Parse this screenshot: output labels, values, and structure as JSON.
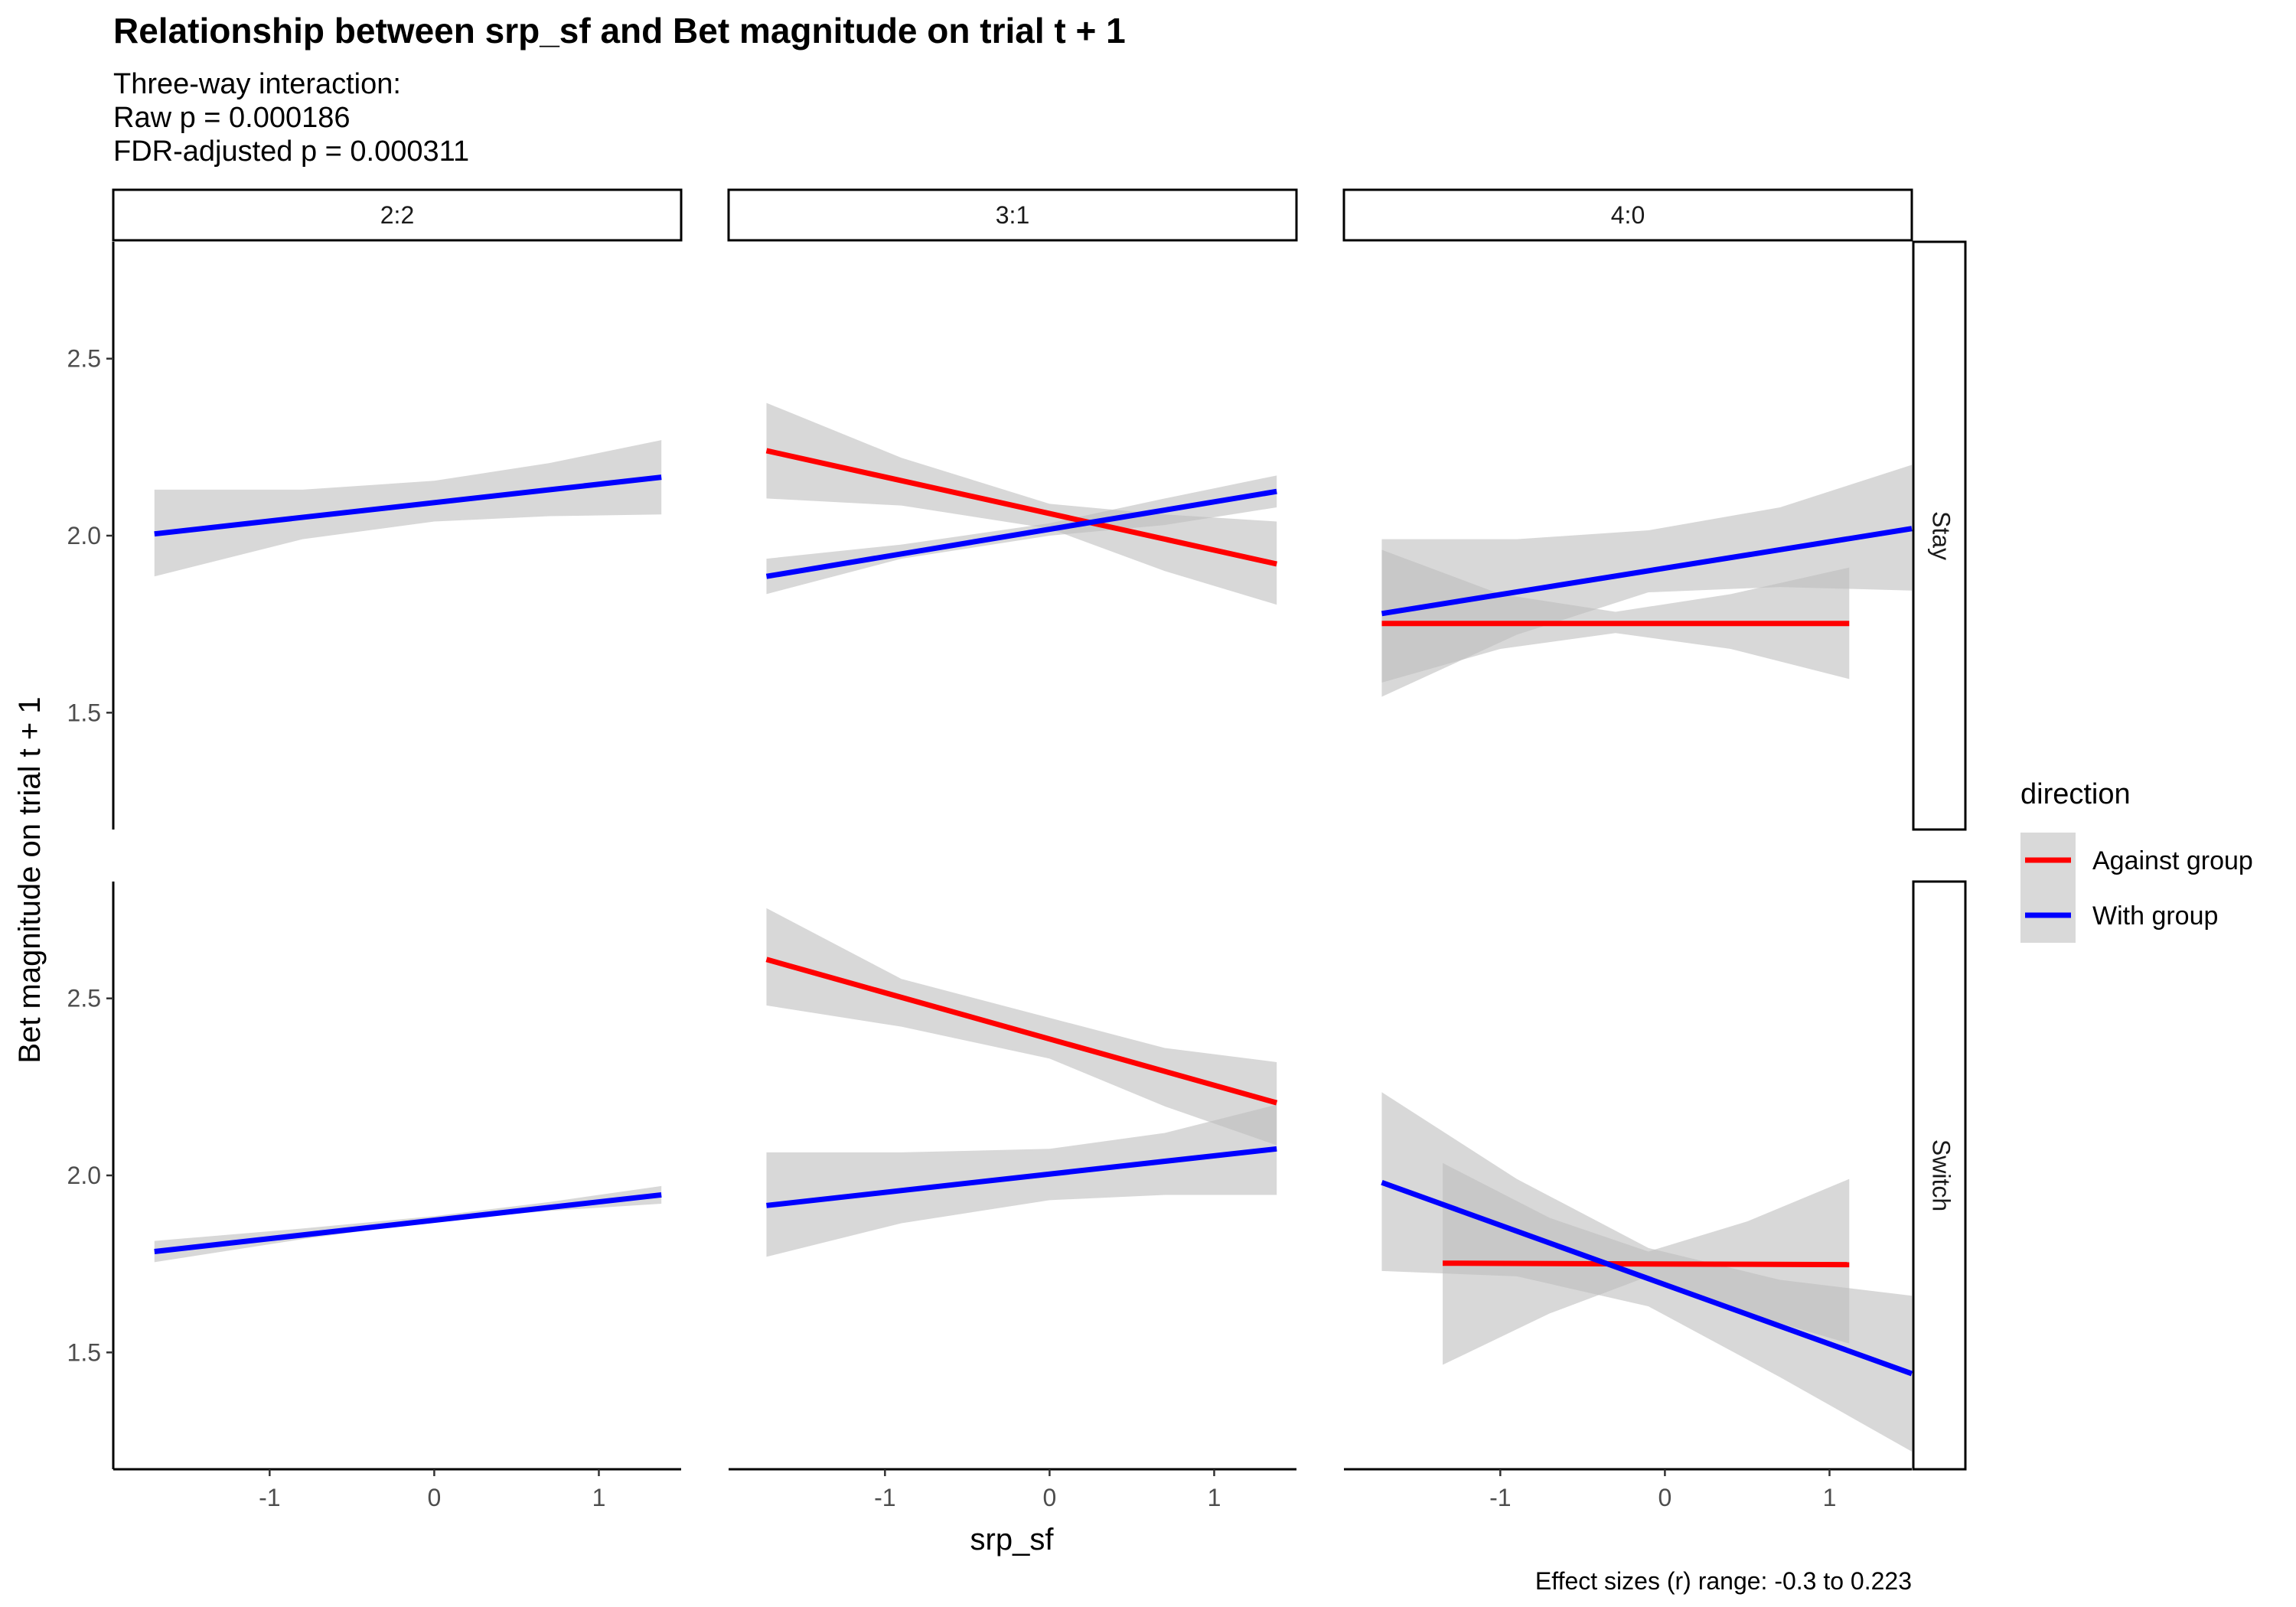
{
  "chart_data": {
    "type": "line",
    "title": "Relationship between srp_sf and Bet magnitude on trial t + 1",
    "subtitle_lines": [
      "Three-way interaction:",
      "Raw p = 0.000186",
      "FDR-adjusted p = 0.000311"
    ],
    "xlabel": "srp_sf",
    "ylabel": "Bet magnitude on trial t + 1",
    "caption": "Effect sizes (r) range: -0.3 to 0.223",
    "xlim": [
      -1.95,
      1.5
    ],
    "ylim": [
      1.17,
      2.83
    ],
    "x_ticks": [
      -1,
      0,
      1
    ],
    "x_tick_labels": [
      "-1",
      "0",
      "1"
    ],
    "y_ticks": [
      1.5,
      2.0,
      2.5
    ],
    "y_tick_labels": [
      "1.5",
      "2.0",
      "2.5"
    ],
    "grid": false,
    "column_facets": [
      "2:2",
      "3:1",
      "4:0"
    ],
    "row_facets": [
      "Stay",
      "Switch"
    ],
    "legend": {
      "title": "direction",
      "position": "right",
      "entries": [
        {
          "name": "Against group",
          "color": "#ff0000"
        },
        {
          "name": "With group",
          "color": "#0000ff"
        }
      ]
    },
    "ribbon_color": "#bebebe",
    "panels": [
      {
        "column": "2:2",
        "row": "Stay",
        "series": [
          {
            "name": "With group",
            "x": [
              -1.7,
              1.38
            ],
            "y": [
              2.005,
              2.165
            ],
            "ribbon_x": [
              -1.7,
              -0.8,
              0.0,
              0.7,
              1.38
            ],
            "ribbon_lower": [
              1.885,
              1.99,
              2.04,
              2.055,
              2.06
            ],
            "ribbon_upper": [
              2.13,
              2.13,
              2.155,
              2.205,
              2.27
            ]
          }
        ]
      },
      {
        "column": "3:1",
        "row": "Stay",
        "series": [
          {
            "name": "Against group",
            "x": [
              -1.72,
              1.38
            ],
            "y": [
              2.24,
              1.92
            ],
            "ribbon_x": [
              -1.72,
              -0.9,
              0.0,
              0.7,
              1.38
            ],
            "ribbon_lower": [
              2.105,
              2.085,
              2.02,
              1.9,
              1.805
            ],
            "ribbon_upper": [
              2.375,
              2.22,
              2.09,
              2.06,
              2.04
            ]
          },
          {
            "name": "With group",
            "x": [
              -1.72,
              1.38
            ],
            "y": [
              1.885,
              2.125
            ],
            "ribbon_x": [
              -1.72,
              -0.9,
              0.0,
              0.7,
              1.38
            ],
            "ribbon_lower": [
              1.835,
              1.935,
              2.0,
              2.03,
              2.08
            ],
            "ribbon_upper": [
              1.935,
              1.975,
              2.035,
              2.105,
              2.17
            ]
          }
        ]
      },
      {
        "column": "4:0",
        "row": "Stay",
        "series": [
          {
            "name": "Against group",
            "x": [
              -1.72,
              1.12
            ],
            "y": [
              1.752,
              1.752
            ],
            "ribbon_x": [
              -1.72,
              -1.0,
              -0.3,
              0.4,
              1.12
            ],
            "ribbon_lower": [
              1.585,
              1.68,
              1.725,
              1.68,
              1.595
            ],
            "ribbon_upper": [
              1.96,
              1.835,
              1.785,
              1.835,
              1.91
            ]
          },
          {
            "name": "With group",
            "x": [
              -1.72,
              1.5
            ],
            "y": [
              1.78,
              2.02
            ],
            "ribbon_x": [
              -1.72,
              -0.9,
              -0.1,
              0.7,
              1.5
            ],
            "ribbon_lower": [
              1.545,
              1.72,
              1.84,
              1.855,
              1.845
            ],
            "ribbon_upper": [
              1.99,
              1.99,
              2.015,
              2.08,
              2.2
            ]
          }
        ]
      },
      {
        "column": "2:2",
        "row": "Switch",
        "series": [
          {
            "name": "With group",
            "x": [
              -1.7,
              1.38
            ],
            "y": [
              1.785,
              1.945
            ],
            "ribbon_x": [
              -1.7,
              -0.8,
              0.0,
              0.7,
              1.38
            ],
            "ribbon_lower": [
              1.755,
              1.82,
              1.87,
              1.9,
              1.92
            ],
            "ribbon_upper": [
              1.815,
              1.85,
              1.885,
              1.925,
              1.97
            ]
          }
        ]
      },
      {
        "column": "3:1",
        "row": "Switch",
        "series": [
          {
            "name": "Against group",
            "x": [
              -1.72,
              1.38
            ],
            "y": [
              2.61,
              2.205
            ],
            "ribbon_x": [
              -1.72,
              -0.9,
              0.0,
              0.7,
              1.38
            ],
            "ribbon_lower": [
              2.48,
              2.42,
              2.33,
              2.195,
              2.085
            ],
            "ribbon_upper": [
              2.755,
              2.555,
              2.445,
              2.36,
              2.32
            ]
          },
          {
            "name": "With group",
            "x": [
              -1.72,
              1.38
            ],
            "y": [
              1.915,
              2.075
            ],
            "ribbon_x": [
              -1.72,
              -0.9,
              0.0,
              0.7,
              1.38
            ],
            "ribbon_lower": [
              1.77,
              1.865,
              1.93,
              1.945,
              1.945
            ],
            "ribbon_upper": [
              2.065,
              2.065,
              2.075,
              2.12,
              2.2
            ]
          }
        ]
      },
      {
        "column": "4:0",
        "row": "Switch",
        "series": [
          {
            "name": "Against group",
            "x": [
              -1.35,
              1.12
            ],
            "y": [
              1.752,
              1.748
            ],
            "ribbon_x": [
              -1.35,
              -0.7,
              -0.1,
              0.5,
              1.12
            ],
            "ribbon_lower": [
              1.465,
              1.61,
              1.715,
              1.61,
              1.525
            ],
            "ribbon_upper": [
              2.035,
              1.88,
              1.785,
              1.87,
              1.99
            ]
          },
          {
            "name": "With group",
            "x": [
              -1.72,
              1.5
            ],
            "y": [
              1.98,
              1.44
            ],
            "ribbon_x": [
              -1.72,
              -0.9,
              -0.1,
              0.7,
              1.5
            ],
            "ribbon_lower": [
              1.73,
              1.715,
              1.63,
              1.43,
              1.22
            ],
            "ribbon_upper": [
              2.235,
              1.99,
              1.795,
              1.705,
              1.66
            ]
          }
        ]
      }
    ]
  }
}
